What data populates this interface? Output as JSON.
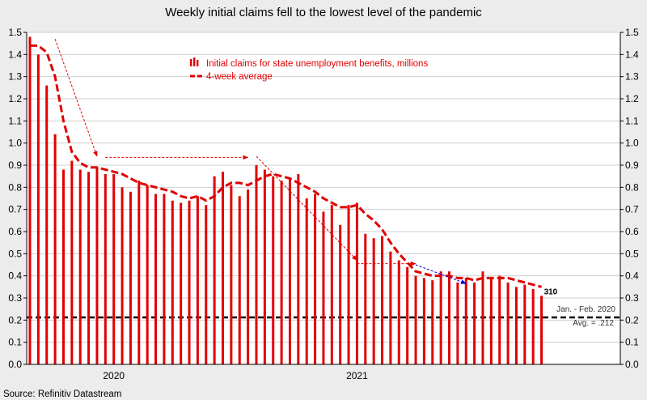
{
  "chart_data": {
    "type": "bar",
    "title": "Weekly initial claims fell to the lowest level of the pandemic",
    "source": "Source: Refinitiv Datastream",
    "y_ticks": [
      "0.0",
      "0.1",
      "0.2",
      "0.3",
      "0.4",
      "0.5",
      "0.6",
      "0.7",
      "0.8",
      "0.9",
      "1.0",
      "1.1",
      "1.2",
      "1.3",
      "1.4",
      "1.5"
    ],
    "ylim": [
      0,
      1.5
    ],
    "x_tick_labels": [
      {
        "label": "2020",
        "week_index": 10
      },
      {
        "label": "2021",
        "week_index": 39
      }
    ],
    "legend": {
      "placement": "top-center",
      "bars_label": "Initial claims for state unemployment benefits,  millions",
      "line_label": "4-week average"
    },
    "series": [
      {
        "name": "Initial claims for state unemployment benefits,  millions",
        "kind": "bar",
        "color": "#e00000",
        "values": [
          1.48,
          1.4,
          1.26,
          1.04,
          0.88,
          0.92,
          0.88,
          0.87,
          0.89,
          0.86,
          0.86,
          0.8,
          0.78,
          0.83,
          0.81,
          0.77,
          0.77,
          0.74,
          0.73,
          0.74,
          0.76,
          0.72,
          0.85,
          0.87,
          0.81,
          0.76,
          0.79,
          0.9,
          0.88,
          0.85,
          0.83,
          0.84,
          0.86,
          0.75,
          0.77,
          0.69,
          0.72,
          0.63,
          0.72,
          0.73,
          0.59,
          0.57,
          0.58,
          0.51,
          0.47,
          0.44,
          0.4,
          0.39,
          0.38,
          0.42,
          0.42,
          0.37,
          0.39,
          0.37,
          0.42,
          0.39,
          0.4,
          0.37,
          0.35,
          0.36,
          0.34,
          0.31
        ]
      },
      {
        "name": "4-week average",
        "kind": "line",
        "style": "dashed",
        "color": "#e00000",
        "values": [
          1.44,
          1.44,
          1.41,
          1.3,
          1.1,
          0.96,
          0.91,
          0.89,
          0.89,
          0.88,
          0.87,
          0.86,
          0.84,
          0.82,
          0.81,
          0.8,
          0.79,
          0.78,
          0.76,
          0.75,
          0.76,
          0.74,
          0.76,
          0.8,
          0.82,
          0.82,
          0.81,
          0.83,
          0.85,
          0.86,
          0.85,
          0.84,
          0.82,
          0.8,
          0.78,
          0.75,
          0.73,
          0.71,
          0.71,
          0.72,
          0.68,
          0.65,
          0.61,
          0.55,
          0.5,
          0.46,
          0.42,
          0.41,
          0.4,
          0.4,
          0.4,
          0.39,
          0.39,
          0.38,
          0.39,
          0.39,
          0.39,
          0.39,
          0.38,
          0.37,
          0.36,
          0.35
        ]
      }
    ],
    "reference_line": {
      "value": 0.212,
      "label_line1": "Jan. - Feb. 2020",
      "label_line2": "Avg. = .212",
      "style": "dashed",
      "color": "#000000"
    },
    "last_value_label": "310",
    "trend_arrows": [
      {
        "from": [
          3,
          1.47
        ],
        "to": [
          8,
          0.94
        ],
        "color": "#e00000"
      },
      {
        "from": [
          9,
          0.935
        ],
        "to": [
          26,
          0.935
        ],
        "color": "#e00000"
      },
      {
        "from": [
          27,
          0.94
        ],
        "to": [
          39,
          0.47
        ],
        "color": "#e00000"
      },
      {
        "from": [
          39,
          0.455
        ],
        "to": [
          46,
          0.455
        ],
        "color": "#e00000"
      },
      {
        "from": [
          46,
          0.45
        ],
        "to": [
          52,
          0.365
        ],
        "color": "#0000e0"
      }
    ],
    "x_axis_note": "weekly observations; axis extends beyond last bar"
  }
}
